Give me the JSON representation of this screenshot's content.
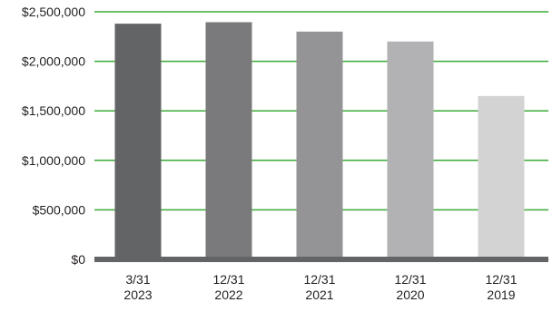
{
  "chart_data": {
    "type": "bar",
    "categories": [
      [
        "3/31",
        "2023"
      ],
      [
        "12/31",
        "2022"
      ],
      [
        "12/31",
        "2021"
      ],
      [
        "12/31",
        "2020"
      ],
      [
        "12/31",
        "2019"
      ]
    ],
    "values": [
      2380000,
      2395000,
      2300000,
      2200000,
      1650000
    ],
    "bar_colors": [
      "#636466",
      "#7a797b",
      "#949395",
      "#b2b1b3",
      "#d3d3d4"
    ],
    "ylim": [
      0,
      2500000
    ],
    "yticks": [
      0,
      500000,
      1000000,
      1500000,
      2000000,
      2500000
    ],
    "ytick_labels": [
      "$0",
      "$500,000",
      "$1,000,000",
      "$1,500,000",
      "$2,000,000",
      "$2,500,000"
    ],
    "grid": true,
    "grid_color": "#3aaa35",
    "baseline_color": "#636466",
    "title": "",
    "xlabel": "",
    "ylabel": ""
  }
}
